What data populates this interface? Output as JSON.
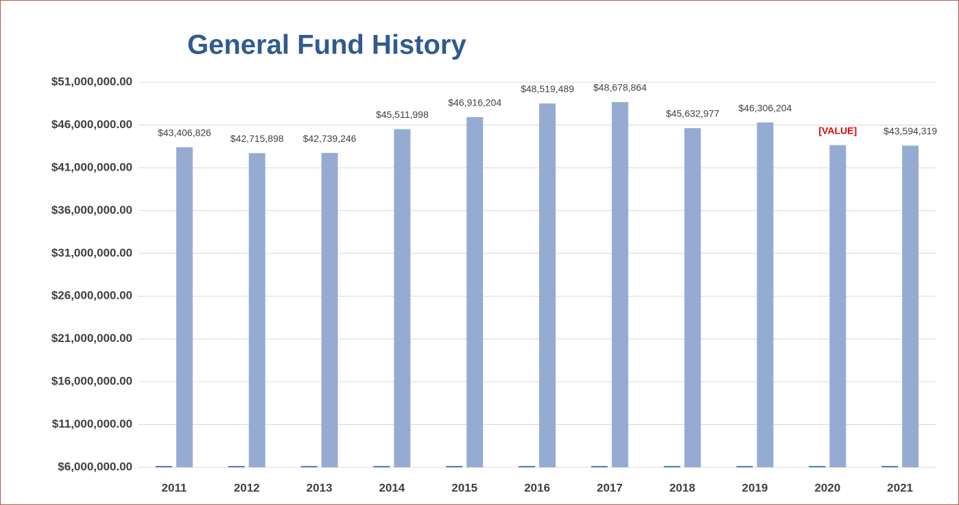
{
  "chart_data": {
    "type": "bar",
    "title": "General Fund History",
    "categories": [
      "2011",
      "2012",
      "2013",
      "2014",
      "2015",
      "2016",
      "2017",
      "2018",
      "2019",
      "2020",
      "2021"
    ],
    "series": [
      {
        "color": "#4472c4",
        "values": [
          6150000,
          6150000,
          6150000,
          6150000,
          6150000,
          6150000,
          6150000,
          6150000,
          6150000,
          6150000,
          6150000
        ]
      },
      {
        "color": "#95abd2",
        "values": [
          43406826,
          42715898,
          42739246,
          45511998,
          46916204,
          48519489,
          48678864,
          45632977,
          46306204,
          43650000,
          43594319
        ],
        "value_labels": [
          "$43,406,826",
          "$42,715,898",
          "$42,739,246",
          "$45,511,998",
          "$46,916,204",
          "$48,519,489",
          "$48,678,864",
          "$45,632,977",
          "$46,306,204",
          "[VALUE]",
          "$43,594,319"
        ],
        "value_label_colors": [
          "#404040",
          "#404040",
          "#404040",
          "#404040",
          "#404040",
          "#404040",
          "#404040",
          "#404040",
          "#404040",
          "#e00000",
          "#404040"
        ]
      }
    ],
    "ylim": [
      6000000,
      51000000
    ],
    "yticks": [
      {
        "value": 6000000,
        "label": "$6,000,000.00"
      },
      {
        "value": 11000000,
        "label": "$11,000,000.00"
      },
      {
        "value": 16000000,
        "label": "$16,000,000.00"
      },
      {
        "value": 21000000,
        "label": "$21,000,000.00"
      },
      {
        "value": 26000000,
        "label": "$26,000,000.00"
      },
      {
        "value": 31000000,
        "label": "$31,000,000.00"
      },
      {
        "value": 36000000,
        "label": "$36,000,000.00"
      },
      {
        "value": 41000000,
        "label": "$41,000,000.00"
      },
      {
        "value": 46000000,
        "label": "$46,000,000.00"
      },
      {
        "value": 51000000,
        "label": "$51,000,000.00"
      }
    ],
    "grid": true
  }
}
